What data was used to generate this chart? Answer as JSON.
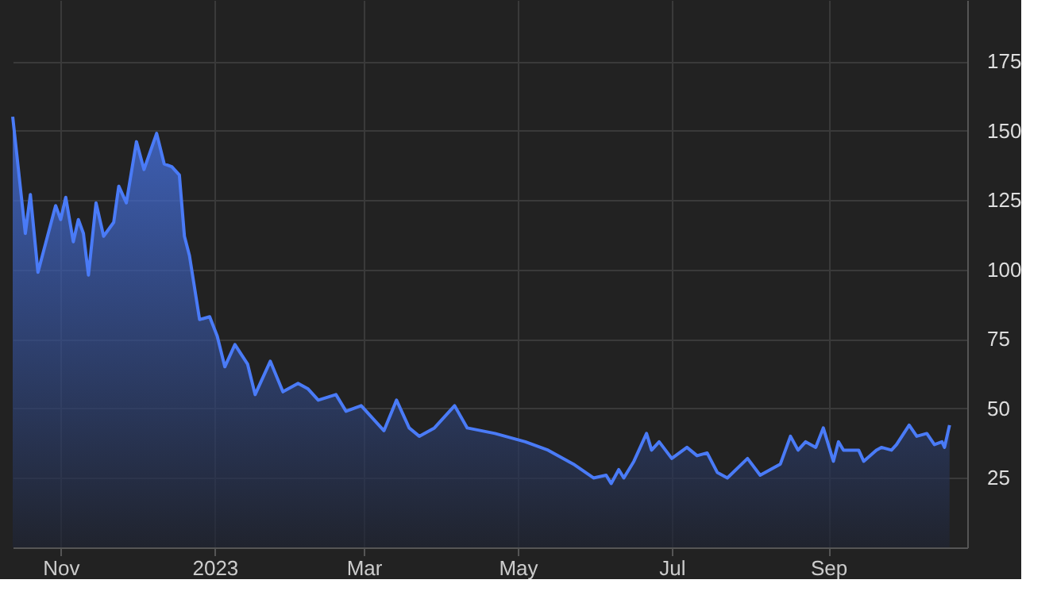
{
  "chart_data": {
    "type": "area",
    "x": [
      "2022-10-13",
      "2022-10-18",
      "2022-10-20",
      "2022-10-23",
      "2022-10-30",
      "2022-11-01",
      "2022-11-03",
      "2022-11-06",
      "2022-11-08",
      "2022-11-10",
      "2022-11-12",
      "2022-11-15",
      "2022-11-18",
      "2022-11-22",
      "2022-11-24",
      "2022-11-27",
      "2022-12-01",
      "2022-12-04",
      "2022-12-09",
      "2022-12-12",
      "2022-12-15",
      "2022-12-18",
      "2022-12-20",
      "2022-12-22",
      "2022-12-26",
      "2022-12-30",
      "2023-01-02",
      "2023-01-05",
      "2023-01-09",
      "2023-01-14",
      "2023-01-17",
      "2023-01-23",
      "2023-01-28",
      "2023-02-03",
      "2023-02-07",
      "2023-02-11",
      "2023-02-18",
      "2023-02-22",
      "2023-02-28",
      "2023-03-09",
      "2023-03-14",
      "2023-03-19",
      "2023-03-23",
      "2023-03-29",
      "2023-04-06",
      "2023-04-11",
      "2023-04-22",
      "2023-05-04",
      "2023-05-13",
      "2023-05-23",
      "2023-05-31",
      "2023-06-05",
      "2023-06-07",
      "2023-06-10",
      "2023-06-12",
      "2023-06-16",
      "2023-06-21",
      "2023-06-23",
      "2023-06-26",
      "2023-07-01",
      "2023-07-07",
      "2023-07-11",
      "2023-07-15",
      "2023-07-19",
      "2023-07-23",
      "2023-07-31",
      "2023-08-05",
      "2023-08-13",
      "2023-08-17",
      "2023-08-20",
      "2023-08-23",
      "2023-08-27",
      "2023-08-30",
      "2023-09-03",
      "2023-09-05",
      "2023-09-07",
      "2023-09-13",
      "2023-09-15",
      "2023-09-20",
      "2023-09-22",
      "2023-09-26",
      "2023-09-28",
      "2023-10-03",
      "2023-10-06",
      "2023-10-10",
      "2023-10-13",
      "2023-10-16",
      "2023-10-17",
      "2023-10-19"
    ],
    "series": [
      {
        "color": "#4a7bf7",
        "values": [
          155,
          113,
          127,
          99,
          123,
          118,
          126,
          110,
          118,
          113,
          98,
          124,
          112,
          117,
          130,
          124,
          146,
          136,
          149,
          138,
          137,
          134,
          112,
          105,
          82,
          83,
          76,
          65,
          73,
          66,
          55,
          67,
          56,
          59,
          57,
          53,
          55,
          49,
          51,
          42,
          53,
          43,
          40,
          43,
          51,
          43,
          41,
          38,
          35,
          30,
          25,
          26,
          23,
          28,
          25,
          31,
          41,
          35,
          38,
          32,
          36,
          33,
          34,
          27,
          25,
          32,
          26,
          30,
          40,
          35,
          38,
          36,
          43,
          31,
          38,
          35,
          35,
          31,
          35,
          36,
          35,
          37,
          44,
          40,
          41,
          37,
          38,
          36,
          44
        ]
      }
    ],
    "xlim": [
      "2022-10-13",
      "2023-10-26"
    ],
    "xticks": [
      {
        "value": "2022-11-01",
        "label": "Nov"
      },
      {
        "value": "2023-01-01",
        "label": "2023"
      },
      {
        "value": "2023-03-01",
        "label": "Mar"
      },
      {
        "value": "2023-05-01",
        "label": "May"
      },
      {
        "value": "2023-07-01",
        "label": "Jul"
      },
      {
        "value": "2023-09-01",
        "label": "Sep"
      }
    ],
    "ylim": [
      0,
      197
    ],
    "yticks": [
      25,
      50,
      75,
      100,
      125,
      150,
      175
    ],
    "grid": true
  }
}
